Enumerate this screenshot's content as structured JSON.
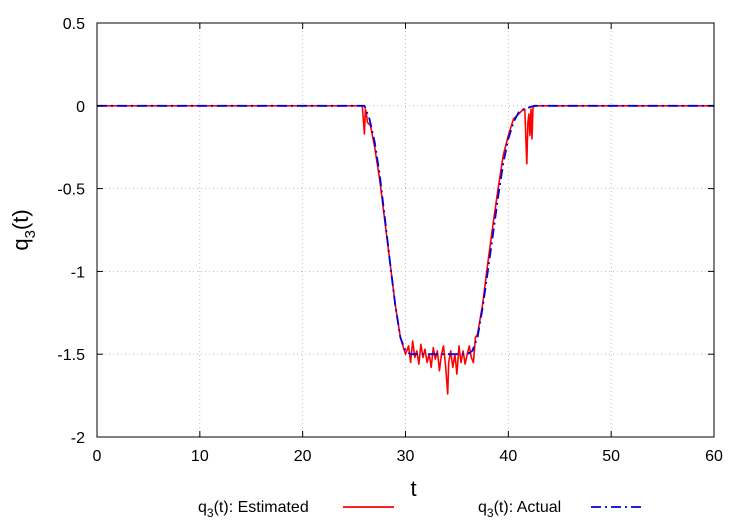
{
  "chart_data": {
    "type": "line",
    "xlabel": "t",
    "ylabel_base": "q",
    "ylabel_sub": "3",
    "ylabel_tail": "(t)",
    "xlim": [
      0,
      60
    ],
    "ylim": [
      -2,
      0.5
    ],
    "xticks": [
      0,
      10,
      20,
      30,
      40,
      50,
      60
    ],
    "yticks": [
      -2,
      -1.5,
      -1,
      -0.5,
      0,
      0.5
    ],
    "xtick_labels": [
      "0",
      "10",
      "20",
      "30",
      "40",
      "50",
      "60"
    ],
    "ytick_labels": [
      "-2",
      "-1.5",
      "-1",
      "-0.5",
      "0",
      "0.5"
    ],
    "grid": true,
    "legend_position": "bottom",
    "series": [
      {
        "name": "q3(t): Estimated",
        "legend": {
          "base": "q",
          "sub": "3",
          "tail": "(t): Estimated"
        },
        "color": "#ff0000",
        "style": "solid",
        "x": [
          0,
          25.8,
          26.0,
          26.1,
          26.2,
          26.3,
          26.6,
          27.0,
          27.5,
          28.0,
          28.5,
          29.0,
          29.5,
          30.0,
          30.3,
          30.5,
          30.7,
          30.9,
          31.1,
          31.3,
          31.5,
          31.7,
          31.9,
          32.1,
          32.3,
          32.5,
          32.7,
          32.9,
          33.1,
          33.3,
          33.5,
          33.7,
          33.9,
          34.1,
          34.2,
          34.4,
          34.6,
          34.8,
          35.0,
          35.2,
          35.4,
          35.6,
          35.8,
          36.0,
          36.2,
          36.4,
          36.6,
          36.8,
          37.0,
          37.5,
          38.0,
          38.5,
          39.0,
          39.5,
          40.0,
          40.5,
          41.0,
          41.3,
          41.6,
          41.8,
          41.9,
          42.0,
          42.1,
          42.2,
          42.3,
          42.4,
          42.6,
          60
        ],
        "y": [
          0,
          0,
          -0.17,
          -0.02,
          -0.05,
          -0.1,
          -0.12,
          -0.25,
          -0.45,
          -0.7,
          -0.95,
          -1.2,
          -1.4,
          -1.5,
          -1.45,
          -1.55,
          -1.42,
          -1.52,
          -1.48,
          -1.56,
          -1.44,
          -1.52,
          -1.47,
          -1.55,
          -1.5,
          -1.58,
          -1.46,
          -1.53,
          -1.48,
          -1.6,
          -1.5,
          -1.45,
          -1.57,
          -1.74,
          -1.55,
          -1.48,
          -1.58,
          -1.5,
          -1.62,
          -1.45,
          -1.55,
          -1.48,
          -1.56,
          -1.5,
          -1.45,
          -1.52,
          -1.55,
          -1.4,
          -1.38,
          -1.2,
          -0.95,
          -0.72,
          -0.5,
          -0.3,
          -0.18,
          -0.08,
          -0.05,
          -0.03,
          -0.02,
          -0.35,
          -0.1,
          -0.05,
          -0.18,
          -0.02,
          -0.2,
          -0.01,
          0,
          0
        ]
      },
      {
        "name": "q3(t): Actual",
        "legend": {
          "base": "q",
          "sub": "3",
          "tail": "(t): Actual"
        },
        "color": "#0000dd",
        "style": "dash-dot",
        "x": [
          0,
          26.0,
          26.5,
          27.0,
          27.5,
          28.0,
          28.5,
          29.0,
          29.5,
          30.0,
          30.5,
          31.0,
          32.0,
          33.0,
          34.0,
          35.0,
          36.0,
          36.5,
          37.0,
          37.5,
          38.0,
          38.5,
          39.0,
          39.5,
          40.0,
          40.5,
          41.0,
          41.5,
          42.0,
          42.5,
          60
        ],
        "y": [
          0,
          0,
          -0.08,
          -0.22,
          -0.42,
          -0.68,
          -0.95,
          -1.2,
          -1.4,
          -1.48,
          -1.5,
          -1.5,
          -1.5,
          -1.5,
          -1.5,
          -1.5,
          -1.5,
          -1.48,
          -1.4,
          -1.22,
          -1.0,
          -0.78,
          -0.55,
          -0.35,
          -0.2,
          -0.1,
          -0.04,
          -0.02,
          -0.01,
          0,
          0
        ]
      }
    ]
  }
}
